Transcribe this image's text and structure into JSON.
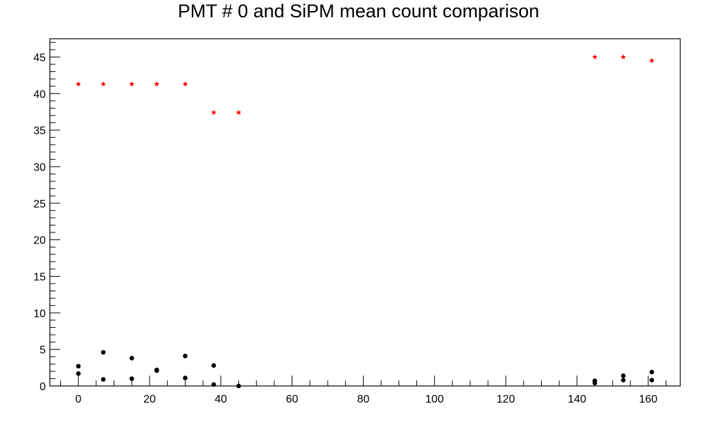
{
  "chart_data": {
    "type": "scatter",
    "title": "PMT # 0 and SiPM mean count comparison",
    "xlabel": "",
    "ylabel": "",
    "xlim": [
      -8,
      169
    ],
    "ylim": [
      0,
      47.5
    ],
    "x_ticks": [
      0,
      20,
      40,
      60,
      80,
      100,
      120,
      140,
      160
    ],
    "y_ticks": [
      0,
      5,
      10,
      15,
      20,
      25,
      30,
      35,
      40,
      45
    ],
    "grid": false,
    "legend": "none",
    "series": [
      {
        "marker": "star",
        "color": "#ff0000",
        "points": [
          {
            "x": 0,
            "y": 41.3
          },
          {
            "x": 7,
            "y": 41.3
          },
          {
            "x": 15,
            "y": 41.3
          },
          {
            "x": 22,
            "y": 41.3
          },
          {
            "x": 30,
            "y": 41.3
          },
          {
            "x": 38,
            "y": 37.4
          },
          {
            "x": 45,
            "y": 37.4
          },
          {
            "x": 145,
            "y": 45.0
          },
          {
            "x": 153,
            "y": 45.0
          },
          {
            "x": 161,
            "y": 44.5
          }
        ]
      },
      {
        "marker": "circle",
        "color": "#000000",
        "points": [
          {
            "x": 0,
            "y": 2.7
          },
          {
            "x": 0,
            "y": 1.7
          },
          {
            "x": 7,
            "y": 4.6
          },
          {
            "x": 7,
            "y": 0.9
          },
          {
            "x": 15,
            "y": 3.8
          },
          {
            "x": 15,
            "y": 1.0
          },
          {
            "x": 22,
            "y": 2.2
          },
          {
            "x": 22,
            "y": 2.1
          },
          {
            "x": 30,
            "y": 4.1
          },
          {
            "x": 30,
            "y": 1.1
          },
          {
            "x": 38,
            "y": 2.8
          },
          {
            "x": 38,
            "y": 0.2
          },
          {
            "x": 45,
            "y": 0.0
          },
          {
            "x": 145,
            "y": 0.7
          },
          {
            "x": 145,
            "y": 0.4
          },
          {
            "x": 153,
            "y": 1.4
          },
          {
            "x": 153,
            "y": 0.8
          },
          {
            "x": 161,
            "y": 1.9
          },
          {
            "x": 161,
            "y": 0.8
          }
        ]
      }
    ]
  }
}
